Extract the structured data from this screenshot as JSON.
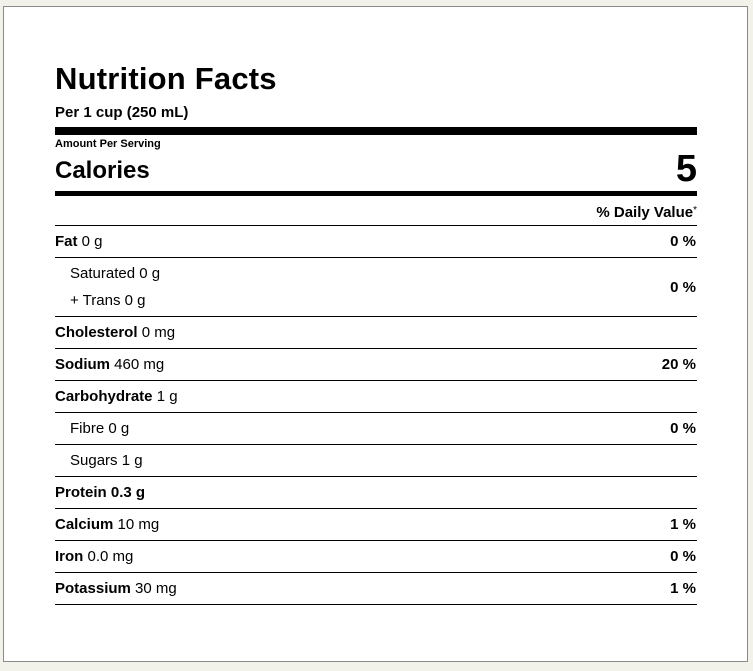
{
  "label": {
    "title": "Nutrition Facts",
    "serving": "Per 1 cup (250 mL)",
    "amount_per_serving": "Amount Per Serving",
    "calories_label": "Calories",
    "calories_value": "5",
    "daily_value_header": "% Daily Value",
    "daily_value_mark": "*"
  },
  "nutrients": {
    "fat": {
      "name": "Fat",
      "amount": "0 g",
      "dv": "0 %"
    },
    "saturated": {
      "name": "Saturated",
      "amount": "0 g"
    },
    "trans": {
      "name": "+ Trans",
      "amount": "0 g"
    },
    "sat_trans_dv": "0 %",
    "cholesterol": {
      "name": "Cholesterol",
      "amount": "0 mg",
      "dv": ""
    },
    "sodium": {
      "name": "Sodium",
      "amount": "460 mg",
      "dv": "20 %"
    },
    "carbohydrate": {
      "name": "Carbohydrate",
      "amount": "1 g",
      "dv": ""
    },
    "fibre": {
      "name": "Fibre",
      "amount": "0 g",
      "dv": "0 %"
    },
    "sugars": {
      "name": "Sugars",
      "amount": "1 g",
      "dv": ""
    },
    "protein": {
      "name": "Protein",
      "amount": "0.3 g",
      "dv": ""
    },
    "calcium": {
      "name": "Calcium",
      "amount": "10 mg",
      "dv": "1 %"
    },
    "iron": {
      "name": "Iron",
      "amount": "0.0 mg",
      "dv": "0 %"
    },
    "potassium": {
      "name": "Potassium",
      "amount": "30 mg",
      "dv": "1 %"
    }
  }
}
